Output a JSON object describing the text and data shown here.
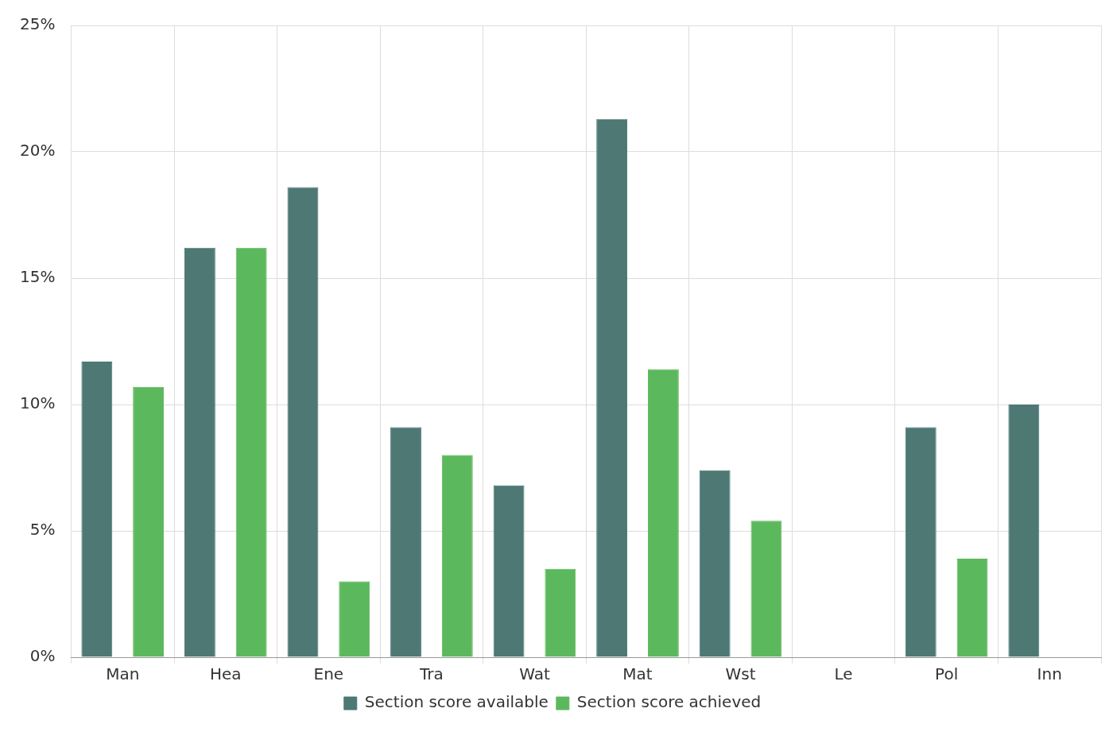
{
  "chart_data": {
    "type": "bar",
    "categories": [
      "Man",
      "Hea",
      "Ene",
      "Tra",
      "Wat",
      "Mat",
      "Wst",
      "Le",
      "Pol",
      "Inn"
    ],
    "series": [
      {
        "name": "Section score available",
        "color": "#4d7874",
        "values": [
          11.7,
          16.2,
          18.6,
          9.1,
          6.8,
          21.3,
          7.4,
          0,
          9.1,
          10.0
        ]
      },
      {
        "name": "Section score achieved",
        "color": "#5cb85c",
        "values": [
          10.7,
          16.2,
          3.0,
          8.0,
          3.5,
          11.4,
          5.4,
          0,
          3.9,
          0
        ]
      }
    ],
    "ylim": [
      0,
      25
    ],
    "yticks": [
      {
        "value": 0,
        "label": "0%"
      },
      {
        "value": 5,
        "label": "5%"
      },
      {
        "value": 10,
        "label": "10%"
      },
      {
        "value": 15,
        "label": "15%"
      },
      {
        "value": 20,
        "label": "20%"
      },
      {
        "value": 25,
        "label": "25%"
      }
    ],
    "grid": true,
    "legend": "bottom"
  }
}
